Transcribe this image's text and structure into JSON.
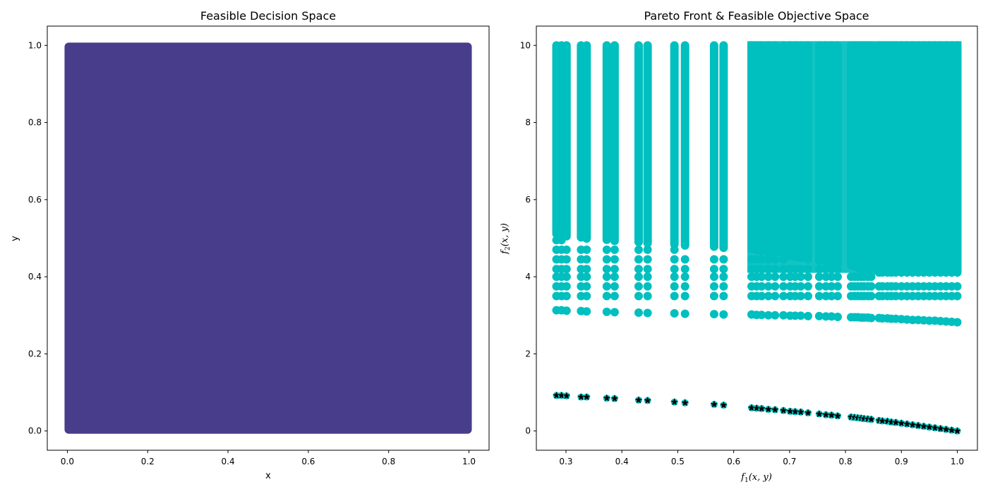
{
  "colors": {
    "decision_fill": "#483d8b",
    "objective_points": "#00bfbf",
    "pareto_marker": "#000000"
  },
  "chart_data": [
    {
      "type": "scatter",
      "title": "Feasible Decision Space",
      "xlabel": "x",
      "ylabel": "y",
      "xlim": [
        -0.05,
        1.05
      ],
      "ylim": [
        -0.05,
        1.05
      ],
      "xticks": [
        0.0,
        0.2,
        0.4,
        0.6,
        0.8,
        1.0
      ],
      "xtick_labels": [
        "0.0",
        "0.2",
        "0.4",
        "0.6",
        "0.8",
        "1.0"
      ],
      "yticks": [
        0.0,
        0.2,
        0.4,
        0.6,
        0.8,
        1.0
      ],
      "ytick_labels": [
        "0.0",
        "0.2",
        "0.4",
        "0.6",
        "0.8",
        "1.0"
      ],
      "region": {
        "x": [
          0.0,
          1.0
        ],
        "y": [
          0.0,
          1.0
        ],
        "description": "dense uniform grid of feasible points"
      }
    },
    {
      "type": "scatter",
      "title": "Pareto Front & Feasible Objective Space",
      "xlabel_main": "f",
      "xlabel_sub": "1",
      "xlabel_args": "(x, y)",
      "ylabel_main": "f",
      "ylabel_sub": "2",
      "ylabel_args": "(x, y)",
      "xlim": [
        0.247,
        1.036
      ],
      "ylim": [
        -0.5,
        10.5
      ],
      "xticks": [
        0.3,
        0.4,
        0.5,
        0.6,
        0.7,
        0.8,
        0.9,
        1.0
      ],
      "xtick_labels": [
        "0.3",
        "0.4",
        "0.5",
        "0.6",
        "0.7",
        "0.8",
        "0.9",
        "1.0"
      ],
      "yticks": [
        0,
        2,
        4,
        6,
        8,
        10
      ],
      "ytick_labels": [
        "0",
        "2",
        "4",
        "6",
        "8",
        "10"
      ],
      "feasible_series": {
        "name": "Feasible Objective Space",
        "f1_values": [
          0.283,
          0.292,
          0.301,
          0.327,
          0.337,
          0.373,
          0.387,
          0.43,
          0.446,
          0.494,
          0.513,
          0.565,
          0.582,
          0.632,
          0.641,
          0.65,
          0.662,
          0.674,
          0.689,
          0.701,
          0.71,
          0.72,
          0.733,
          0.753,
          0.765,
          0.775,
          0.786,
          0.81,
          0.816,
          0.822,
          0.828,
          0.833,
          0.84,
          0.846,
          0.86,
          0.866,
          0.875,
          0.882,
          0.89,
          0.9,
          0.91,
          0.92,
          0.93,
          0.94,
          0.95,
          0.96,
          0.97,
          0.98,
          0.99,
          1.0
        ],
        "f2_bottom": [
          3.13,
          3.13,
          3.12,
          3.11,
          3.1,
          3.09,
          3.08,
          3.07,
          3.06,
          3.05,
          3.04,
          3.03,
          3.02,
          3.02,
          3.01,
          3.01,
          3.0,
          3.0,
          3.0,
          2.99,
          2.99,
          2.99,
          2.98,
          2.98,
          2.97,
          2.97,
          2.96,
          2.95,
          2.95,
          2.95,
          2.94,
          2.94,
          2.94,
          2.93,
          2.93,
          2.92,
          2.92,
          2.91,
          2.91,
          2.9,
          2.89,
          2.88,
          2.88,
          2.87,
          2.86,
          2.86,
          2.85,
          2.84,
          2.83,
          2.82
        ],
        "f2_top": 10.0,
        "bands_f2": [
          3.5,
          3.75,
          4.0,
          4.2,
          4.45,
          4.7,
          4.95,
          5.2,
          5.45,
          5.7,
          5.95,
          6.2,
          6.45,
          6.7,
          6.95,
          7.2,
          7.45,
          7.7,
          7.95,
          8.2,
          8.45,
          8.7,
          8.95,
          9.2,
          9.45,
          9.7,
          10.0
        ]
      },
      "pareto_front": {
        "name": "Pareto Front",
        "f1": [
          0.283,
          0.292,
          0.301,
          0.327,
          0.337,
          0.373,
          0.387,
          0.43,
          0.446,
          0.494,
          0.513,
          0.565,
          0.582,
          0.632,
          0.641,
          0.65,
          0.662,
          0.674,
          0.689,
          0.701,
          0.71,
          0.72,
          0.733,
          0.753,
          0.765,
          0.775,
          0.786,
          0.81,
          0.816,
          0.822,
          0.828,
          0.833,
          0.84,
          0.846,
          0.86,
          0.866,
          0.875,
          0.882,
          0.89,
          0.9,
          0.91,
          0.92,
          0.93,
          0.94,
          0.95,
          0.96,
          0.97,
          0.98,
          0.99,
          1.0
        ],
        "f2": [
          0.92,
          0.92,
          0.91,
          0.88,
          0.88,
          0.85,
          0.84,
          0.8,
          0.79,
          0.75,
          0.73,
          0.69,
          0.67,
          0.6,
          0.59,
          0.58,
          0.56,
          0.55,
          0.53,
          0.51,
          0.5,
          0.49,
          0.47,
          0.44,
          0.42,
          0.41,
          0.39,
          0.36,
          0.35,
          0.34,
          0.33,
          0.32,
          0.31,
          0.3,
          0.27,
          0.26,
          0.25,
          0.23,
          0.22,
          0.2,
          0.18,
          0.16,
          0.14,
          0.12,
          0.1,
          0.08,
          0.06,
          0.04,
          0.02,
          0.0
        ]
      }
    }
  ]
}
